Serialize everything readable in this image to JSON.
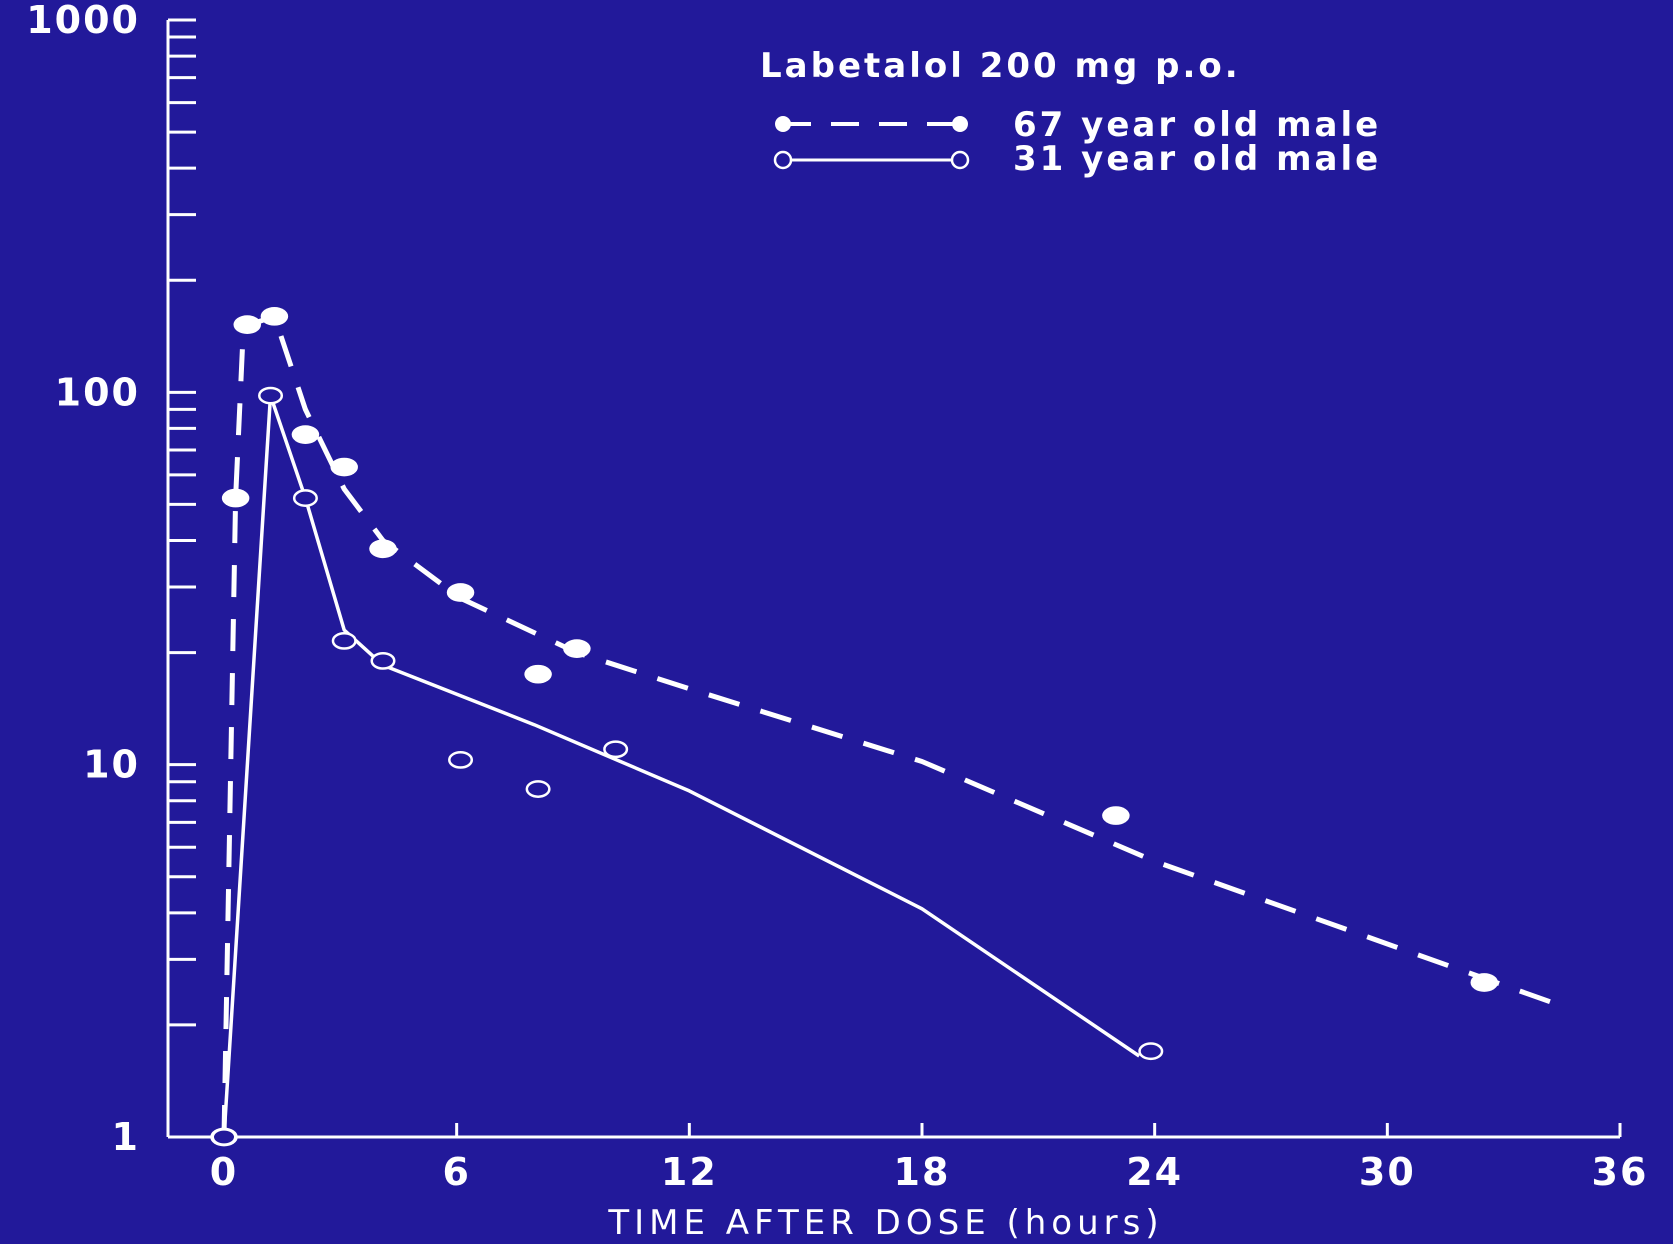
{
  "chart_data": {
    "type": "line",
    "title": "Labetalol 200 mg p.o.",
    "xlabel": "TIME AFTER DOSE (hours)",
    "ylabel": "",
    "xlim": [
      0,
      36
    ],
    "ylim": [
      1,
      1000
    ],
    "yscale": "log",
    "x_ticks": [
      0,
      6,
      12,
      18,
      24,
      30,
      36
    ],
    "x_tick_labels": [
      "0",
      "6",
      "12",
      "18",
      "24",
      "30",
      "36"
    ],
    "y_ticks": [
      1,
      10,
      100,
      1000
    ],
    "y_tick_labels": [
      "1",
      "10",
      "100",
      "1000"
    ],
    "grid": false,
    "legend_position": "top-right",
    "colors": {
      "background": "#22199a",
      "foreground": "#ffffff"
    },
    "series": [
      {
        "name": "67 year old male",
        "marker": "filled-circle",
        "line_style": "dashed",
        "points": [
          [
            0,
            1
          ],
          [
            0.3,
            52
          ],
          [
            0.6,
            152
          ],
          [
            1.3,
            160
          ],
          [
            2.1,
            77
          ],
          [
            3.1,
            63
          ],
          [
            4.1,
            38
          ],
          [
            6.1,
            29
          ],
          [
            8.1,
            17.5
          ],
          [
            9.1,
            20.5
          ],
          [
            23,
            7.3
          ],
          [
            32.5,
            2.6
          ]
        ],
        "fit_line": [
          [
            0,
            1
          ],
          [
            0.3,
            52
          ],
          [
            0.5,
            150
          ],
          [
            1.3,
            160
          ],
          [
            2.1,
            90
          ],
          [
            3.1,
            55
          ],
          [
            4.1,
            40
          ],
          [
            6.1,
            28
          ],
          [
            9.1,
            20
          ],
          [
            12,
            16
          ],
          [
            18,
            10.2
          ],
          [
            24,
            5.5
          ],
          [
            34.5,
            2.25
          ]
        ]
      },
      {
        "name": "31 year old male",
        "marker": "open-circle",
        "line_style": "solid",
        "points": [
          [
            0,
            1
          ],
          [
            1.2,
            98
          ],
          [
            2.1,
            52
          ],
          [
            3.1,
            21.5
          ],
          [
            4.1,
            19
          ],
          [
            6.1,
            10.3
          ],
          [
            8.1,
            8.6
          ],
          [
            10.1,
            11
          ],
          [
            23.9,
            1.7
          ]
        ],
        "fit_line": [
          [
            0,
            1
          ],
          [
            1.2,
            98
          ],
          [
            2.1,
            52
          ],
          [
            3.1,
            23
          ],
          [
            4.1,
            18.5
          ],
          [
            8,
            12.8
          ],
          [
            12,
            8.5
          ],
          [
            18,
            4.1
          ],
          [
            23.6,
            1.65
          ]
        ]
      }
    ]
  }
}
